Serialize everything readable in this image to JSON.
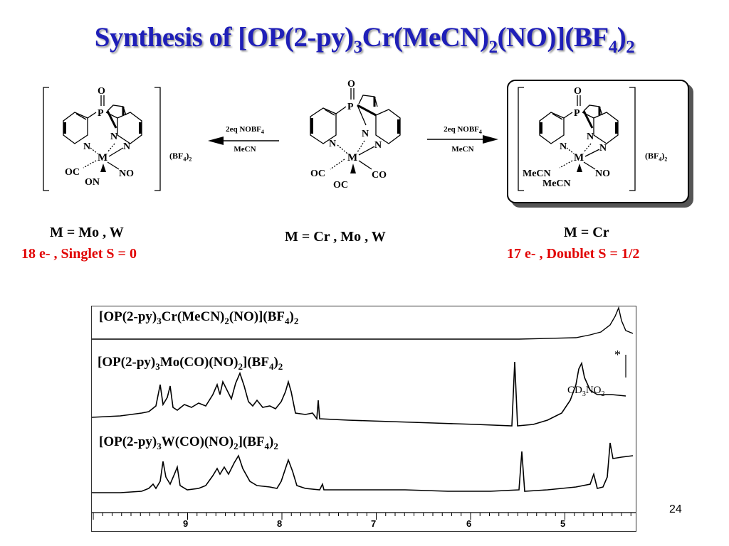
{
  "slide": {
    "title_parts": [
      "Synthesis of [OP(2-py)",
      "3",
      "Cr(MeCN)",
      "2",
      "(NO)](BF",
      "4",
      ")",
      "2"
    ],
    "page_number": "24"
  },
  "left_complex": {
    "atoms": {
      "O": "O",
      "P": "P",
      "N1": "N",
      "N2": "N",
      "N3": "N",
      "M": "M",
      "OC": "OC",
      "NO": "NO",
      "ON": "ON"
    },
    "counterion": "(BF",
    "counterion_sub": "4",
    "counterion_tail": ")",
    "counterion_tail_sub": "2",
    "metal_label": "M = Mo , W",
    "electron_label": "18 e- , Singlet  S = 0"
  },
  "center_complex": {
    "atoms": {
      "O": "O",
      "P": "P",
      "N1": "N",
      "N2": "N",
      "N3": "N",
      "M": "M",
      "OC1": "OC",
      "CO": "CO",
      "OC2": "OC"
    },
    "metal_label": "M = Cr , Mo , W"
  },
  "right_complex": {
    "atoms": {
      "O": "O",
      "P": "P",
      "N1": "N",
      "N2": "N",
      "N3": "N",
      "M": "M",
      "MeCN1": "MeCN",
      "MeCN2": "MeCN",
      "NO": "NO"
    },
    "counterion": "(BF",
    "counterion_sub": "4",
    "counterion_tail": ")",
    "counterion_tail_sub": "2",
    "metal_label": "M = Cr",
    "electron_label": "17 e- , Doublet  S = 1/2"
  },
  "arrows": {
    "left": {
      "reagent": "2eq  NOBF",
      "reagent_sub": "4",
      "solvent": "MeCN"
    },
    "right": {
      "reagent": "2eq  NOBF",
      "reagent_sub": "4",
      "solvent": "MeCN"
    }
  },
  "nmr": {
    "spectra": [
      {
        "parts": [
          "[OP(2-py)",
          "3",
          "Cr(MeCN)",
          "2",
          "(NO)](BF",
          "4",
          ")",
          "2"
        ]
      },
      {
        "parts": [
          "[OP(2-py)",
          "3",
          "Mo(CO)(NO)",
          "2",
          "](BF",
          "4",
          ")",
          "2"
        ]
      },
      {
        "parts": [
          "[OP(2-py)",
          "3",
          "W(CO)(NO)",
          "2",
          "](BF",
          "4",
          ")",
          "2"
        ]
      }
    ],
    "asterisk": "*",
    "solvent": "CD",
    "solvent_sub1": "3",
    "solvent_mid": "NO",
    "solvent_sub2": "2",
    "x_ticks": [
      "9",
      "8",
      "7",
      "6",
      "5"
    ],
    "colors": {
      "primary_line": "#000000",
      "title": "#1f1fb8",
      "accent_red": "#e10000"
    }
  }
}
